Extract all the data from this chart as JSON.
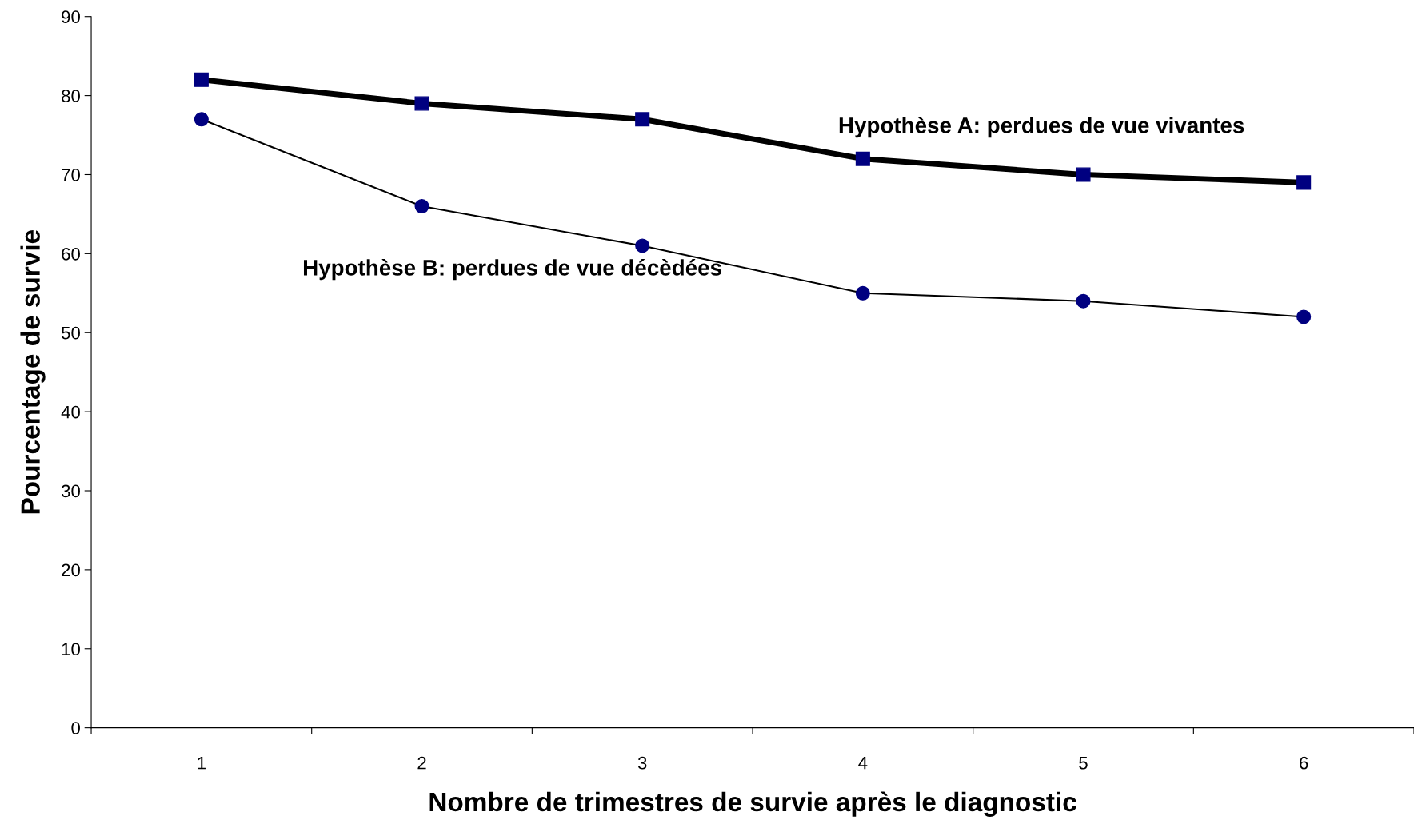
{
  "chart_data": {
    "type": "line",
    "xlabel": "Nombre de trimestres de survie après le diagnostic",
    "ylabel": "Pourcentage de survie",
    "categories": [
      "1",
      "2",
      "3",
      "4",
      "5",
      "6"
    ],
    "series": [
      {
        "name": "Hypothèse A: perdues de vue vivantes",
        "color": "#000080",
        "marker": "square",
        "values": [
          82,
          79,
          77,
          72,
          70,
          69
        ]
      },
      {
        "name": "Hypothèse B: perdues de vue décèdées",
        "color": "#000080",
        "marker": "circle",
        "values": [
          77,
          66,
          61,
          55,
          54,
          52
        ]
      }
    ],
    "ylim": [
      0,
      90
    ],
    "yticks": [
      0,
      10,
      20,
      30,
      40,
      50,
      60,
      70,
      80,
      90
    ],
    "grid": false,
    "legend": false
  }
}
